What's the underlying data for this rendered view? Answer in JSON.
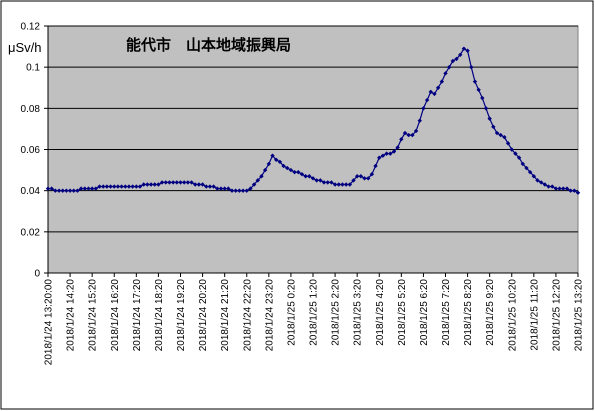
{
  "chart_data": {
    "type": "line",
    "title": "能代市　山本地域振興局",
    "y_label": "μSv/h",
    "categories": [
      "2018/1/24  13:20:00",
      null,
      null,
      null,
      null,
      null,
      "2018/1/24 14:20",
      null,
      null,
      null,
      null,
      null,
      "2018/1/24 15:20",
      null,
      null,
      null,
      null,
      null,
      "2018/1/24 16:20",
      null,
      null,
      null,
      null,
      null,
      "2018/1/24 17:20",
      null,
      null,
      null,
      null,
      null,
      "2018/1/24 18:20",
      null,
      null,
      null,
      null,
      null,
      "2018/1/24 19:20",
      null,
      null,
      null,
      null,
      null,
      "2018/1/24 20:20",
      null,
      null,
      null,
      null,
      null,
      "2018/1/24 21:20",
      null,
      null,
      null,
      null,
      null,
      "2018/1/24 22:20",
      null,
      null,
      null,
      null,
      null,
      "2018/1/24 23:20",
      null,
      null,
      null,
      null,
      null,
      "2018/1/25 0:20",
      null,
      null,
      null,
      null,
      null,
      "2018/1/25 1:20",
      null,
      null,
      null,
      null,
      null,
      "2018/1/25 2:20",
      null,
      null,
      null,
      null,
      null,
      "2018/1/25 3:20",
      null,
      null,
      null,
      null,
      null,
      "2018/1/25 4:20",
      null,
      null,
      null,
      null,
      null,
      "2018/1/25 5:20",
      null,
      null,
      null,
      null,
      null,
      "2018/1/25 6:20",
      null,
      null,
      null,
      null,
      null,
      "2018/1/25 7:20",
      null,
      null,
      null,
      null,
      null,
      "2018/1/25 8:20",
      null,
      null,
      null,
      null,
      null,
      "2018/1/25 9:20",
      null,
      null,
      null,
      null,
      null,
      "2018/1/25 10:20",
      null,
      null,
      null,
      null,
      null,
      "2018/1/25 11:20",
      null,
      null,
      null,
      null,
      null,
      "2018/1/25 12:20",
      null,
      null,
      null,
      null,
      null,
      "2018/1/25 13:20"
    ],
    "series": [
      {
        "name": "能代市　山本地域振興局",
        "color": "#000080",
        "values": [
          0.041,
          0.041,
          0.04,
          0.04,
          0.04,
          0.04,
          0.04,
          0.04,
          0.04,
          0.041,
          0.041,
          0.041,
          0.041,
          0.041,
          0.042,
          0.042,
          0.042,
          0.042,
          0.042,
          0.042,
          0.042,
          0.042,
          0.042,
          0.042,
          0.042,
          0.042,
          0.043,
          0.043,
          0.043,
          0.043,
          0.043,
          0.044,
          0.044,
          0.044,
          0.044,
          0.044,
          0.044,
          0.044,
          0.044,
          0.044,
          0.043,
          0.043,
          0.043,
          0.042,
          0.042,
          0.042,
          0.041,
          0.041,
          0.041,
          0.041,
          0.04,
          0.04,
          0.04,
          0.04,
          0.04,
          0.041,
          0.043,
          0.045,
          0.047,
          0.05,
          0.053,
          0.057,
          0.055,
          0.054,
          0.052,
          0.051,
          0.05,
          0.049,
          0.049,
          0.048,
          0.047,
          0.047,
          0.046,
          0.045,
          0.045,
          0.044,
          0.044,
          0.044,
          0.043,
          0.043,
          0.043,
          0.043,
          0.043,
          0.045,
          0.047,
          0.047,
          0.046,
          0.046,
          0.048,
          0.052,
          0.056,
          0.057,
          0.058,
          0.058,
          0.059,
          0.061,
          0.065,
          0.068,
          0.067,
          0.067,
          0.069,
          0.074,
          0.08,
          0.084,
          0.088,
          0.087,
          0.09,
          0.093,
          0.097,
          0.1,
          0.103,
          0.104,
          0.106,
          0.109,
          0.108,
          0.1,
          0.093,
          0.089,
          0.085,
          0.08,
          0.075,
          0.071,
          0.068,
          0.067,
          0.066,
          0.063,
          0.06,
          0.058,
          0.056,
          0.053,
          0.051,
          0.049,
          0.047,
          0.045,
          0.044,
          0.043,
          0.042,
          0.042,
          0.041,
          0.041,
          0.041,
          0.041,
          0.04,
          0.04,
          0.039
        ]
      }
    ],
    "ylim": [
      0,
      0.12
    ],
    "yticks": [
      0,
      0.02,
      0.04,
      0.06,
      0.08,
      0.1,
      0.12
    ],
    "grid": true,
    "plot_background": "#c0c0c0"
  }
}
